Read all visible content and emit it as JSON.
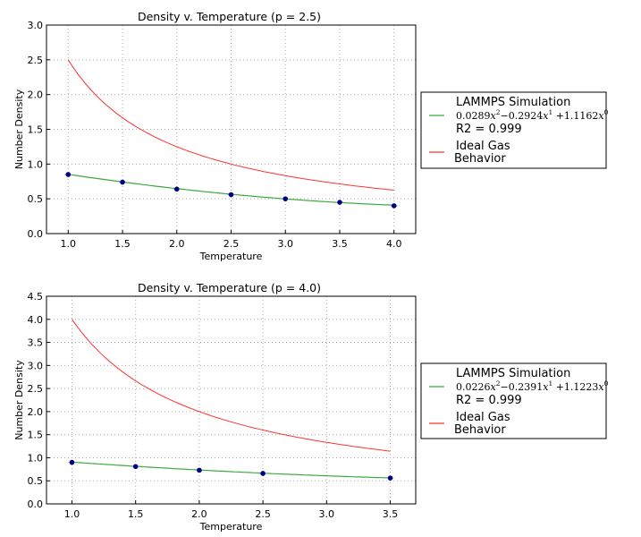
{
  "chart_data": [
    {
      "type": "line",
      "title": "Density v.  Temperature (p = 2.5)",
      "xlabel": "Temperature",
      "ylabel": "Number Density",
      "xlim": [
        0.8,
        4.2
      ],
      "ylim": [
        0,
        3.0
      ],
      "xticks": [
        "1.0",
        "1.5",
        "2.0",
        "2.5",
        "3.0",
        "3.5",
        "4.0"
      ],
      "yticks": [
        "0.0",
        "0.5",
        "1.0",
        "1.5",
        "2.0",
        "2.5",
        "3.0"
      ],
      "grid": true,
      "pressure": 2.5,
      "points": {
        "x": [
          1.0,
          1.5,
          2.0,
          2.5,
          3.0,
          3.5,
          4.0
        ],
        "y": [
          0.85,
          0.74,
          0.64,
          0.56,
          0.5,
          0.45,
          0.4
        ]
      },
      "fit_coeffs": [
        0.0289,
        -0.2924,
        1.1162
      ],
      "legend": {
        "placement": "outside-right",
        "sim_label": "LAMMPS Simulation",
        "fit_terms": [
          "0.0289",
          "x",
          "2",
          "−0.2924",
          "x",
          "1",
          " +1.1162",
          "x",
          "0"
        ],
        "r2": "R2 = 0.999",
        "ideal_line1": "Ideal Gas",
        "ideal_line2": "Behavior"
      }
    },
    {
      "type": "line",
      "title": "Density v.  Temperature (p = 4.0)",
      "xlabel": "Temperature",
      "ylabel": "Number Density",
      "xlim": [
        0.8,
        3.7
      ],
      "ylim": [
        0,
        4.5
      ],
      "xticks": [
        "1.0",
        "1.5",
        "2.0",
        "2.5",
        "3.0",
        "3.5"
      ],
      "yticks": [
        "0.0",
        "0.5",
        "1.0",
        "1.5",
        "2.0",
        "2.5",
        "3.0",
        "3.5",
        "4.0",
        "4.5"
      ],
      "grid": true,
      "pressure": 4.0,
      "points": {
        "x": [
          1.0,
          1.5,
          2.0,
          2.5,
          3.5
        ],
        "y": [
          0.9,
          0.81,
          0.73,
          0.66,
          0.56
        ]
      },
      "fit_coeffs": [
        0.0226,
        -0.2391,
        1.1223
      ],
      "legend": {
        "placement": "outside-right",
        "sim_label": "LAMMPS Simulation",
        "fit_terms": [
          "0.0226",
          "x",
          "2",
          "−0.2391",
          "x",
          "1",
          " +1.1223",
          "x",
          "0"
        ],
        "r2": "R2 = 0.999",
        "ideal_line1": "Ideal Gas",
        "ideal_line2": "Behavior"
      }
    }
  ],
  "colors": {
    "fit": "#3caa3c",
    "ideal": "#ff3333",
    "points": "#00007f",
    "errbar": "#7b9cff"
  }
}
